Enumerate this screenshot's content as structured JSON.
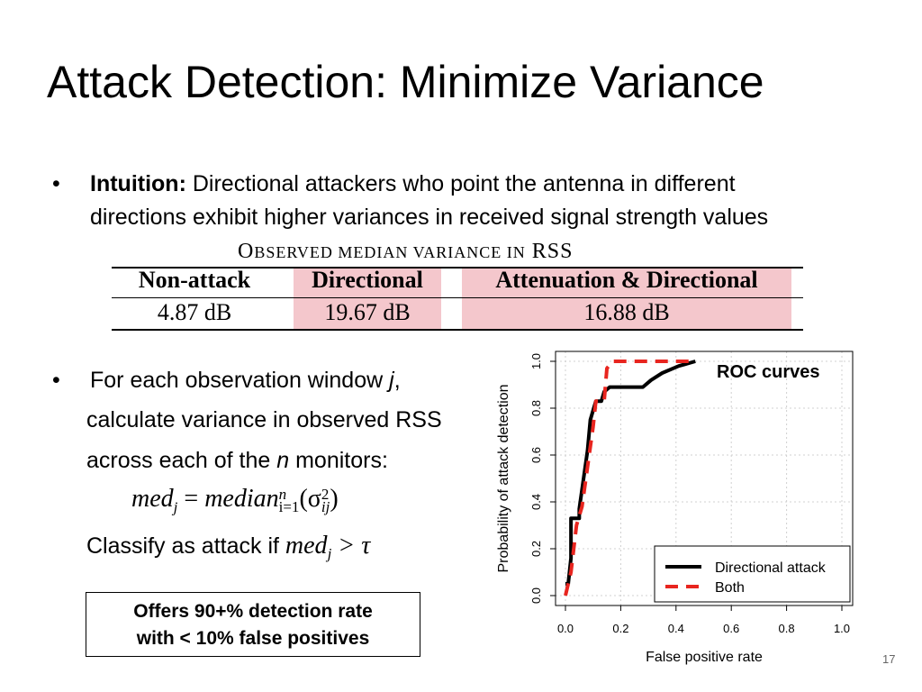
{
  "slide": {
    "title": "Attack Detection: Minimize Variance",
    "bullet1": {
      "marker": "•",
      "label": "Intuition:",
      "line1": " Directional attackers who point the antenna in different",
      "line2": "directions exhibit higher variances in received signal strength values"
    },
    "table": {
      "caption_first": "O",
      "caption_smallcaps": "BSERVED MEDIAN VARIANCE IN",
      "caption_rss": " RSS",
      "headers": [
        "Non-attack",
        "Directional",
        "Attenuation & Directional"
      ],
      "values": [
        "4.87 dB",
        "19.67 dB",
        "16.88 dB"
      ],
      "highlight_color": "#f4c7cc"
    },
    "bullet2": {
      "marker": "•",
      "line1_pre": "For each observation window ",
      "line1_var": "j",
      "line1_post": ",",
      "line2": "calculate variance in observed RSS",
      "line3_pre": "across each of the ",
      "line3_var": "n",
      "line3_post": " monitors:",
      "formula_lhs": "med",
      "formula_lhs_sub": "j",
      "formula_eq": " = ",
      "formula_median": "median",
      "formula_sub": "i=1",
      "formula_sup": "n",
      "formula_open": "(σ",
      "formula_sigma_sub": "ij",
      "formula_sigma_sup": "2",
      "formula_close": ")",
      "classify_text": "Classify as attack if ",
      "classify_formula": "med",
      "classify_sub": "j",
      "classify_rest": " > τ"
    },
    "callout": {
      "line1": "Offers 90+% detection rate",
      "line2": "with < 10% false positives"
    },
    "roc_label": "ROC curves",
    "page_number": "17"
  },
  "chart_data": {
    "type": "line",
    "xlabel": "False positive rate",
    "ylabel": "Probability of attack detection",
    "xlim": [
      0.0,
      1.0
    ],
    "ylim": [
      0.0,
      1.0
    ],
    "xticks": [
      "0.0",
      "0.2",
      "0.4",
      "0.6",
      "0.8",
      "1.0"
    ],
    "yticks": [
      "0.0",
      "0.2",
      "0.4",
      "0.6",
      "0.8",
      "1.0"
    ],
    "grid": true,
    "legend_position": "bottom-right",
    "series": [
      {
        "name": "Directional attack",
        "color": "#000000",
        "style": "solid",
        "x": [
          0.0,
          0.01,
          0.02,
          0.02,
          0.05,
          0.05,
          0.08,
          0.09,
          0.11,
          0.13,
          0.14,
          0.16,
          0.23,
          0.28,
          0.31,
          0.35,
          0.41,
          0.47
        ],
        "y": [
          0.05,
          0.05,
          0.16,
          0.33,
          0.33,
          0.37,
          0.62,
          0.75,
          0.83,
          0.83,
          0.87,
          0.89,
          0.89,
          0.89,
          0.92,
          0.95,
          0.98,
          1.0
        ]
      },
      {
        "name": "Both",
        "color": "#e8251f",
        "style": "dashed",
        "x": [
          0.0,
          0.02,
          0.04,
          0.06,
          0.08,
          0.1,
          0.11,
          0.14,
          0.15,
          0.17,
          0.25,
          0.35,
          0.47
        ],
        "y": [
          0.0,
          0.1,
          0.3,
          0.38,
          0.55,
          0.72,
          0.83,
          0.83,
          0.97,
          1.0,
          1.0,
          1.0,
          1.0
        ]
      }
    ]
  }
}
